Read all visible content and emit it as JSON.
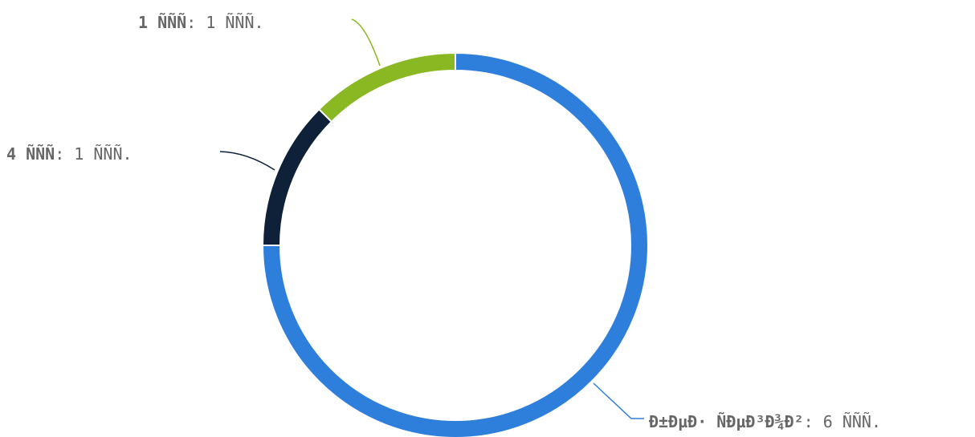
{
  "chart_data": {
    "type": "pie",
    "donut": true,
    "unit": "ÑÑÑ.",
    "slices": [
      {
        "name": "Ð±ÐµÐ· ÑÐµÐ³Ð¾Ð²",
        "value": 6,
        "color": "#2e7fdc",
        "label_name": "Ð±ÐµÐ· ÑÐµÐ³Ð¾Ð²",
        "label_value": ": 6 ÑÑÑ."
      },
      {
        "name": "4 ÑÑÑ",
        "value": 1,
        "color": "#0e2139",
        "label_name": "4 ÑÑÑ",
        "label_value": ": 1 ÑÑÑ."
      },
      {
        "name": "1 ÑÑÑ",
        "value": 1,
        "color": "#8ab822",
        "label_name": "1 ÑÑÑ",
        "label_value": ": 1 ÑÑÑ."
      }
    ]
  }
}
